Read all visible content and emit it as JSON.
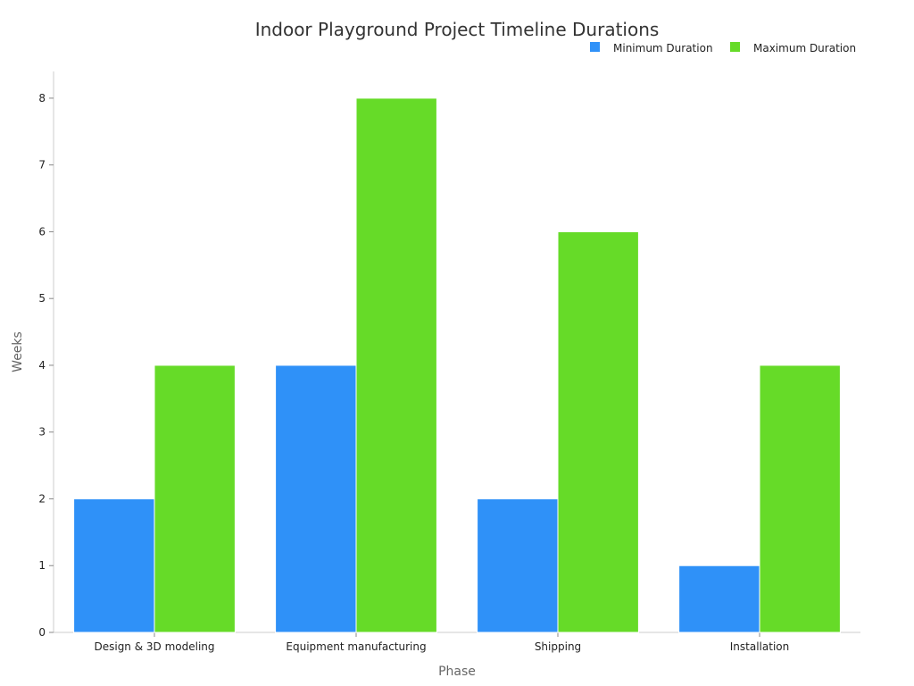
{
  "chart_data": {
    "type": "bar",
    "title": "Indoor Playground Project Timeline Durations",
    "xlabel": "Phase",
    "ylabel": "Weeks",
    "categories": [
      "Design & 3D modeling",
      "Equipment manufacturing",
      "Shipping",
      "Installation"
    ],
    "series": [
      {
        "name": "Minimum Duration",
        "values": [
          2,
          4,
          2,
          1
        ],
        "color": "#2f91f8"
      },
      {
        "name": "Maximum Duration",
        "values": [
          4,
          8,
          6,
          4
        ],
        "color": "#66db28"
      }
    ],
    "ylim": [
      0,
      8.4
    ],
    "yticks": [
      0,
      1,
      2,
      3,
      4,
      5,
      6,
      7,
      8
    ],
    "grid": false,
    "legend": "top-right"
  }
}
